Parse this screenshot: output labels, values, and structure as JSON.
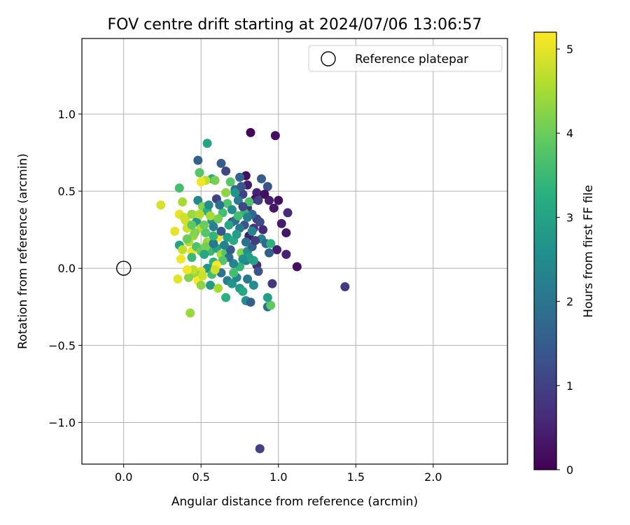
{
  "chart_data": {
    "type": "scatter",
    "title": "FOV centre drift starting at 2024/07/06 13:06:57",
    "xlabel": "Angular distance from reference (arcmin)",
    "ylabel": "Rotation from reference (arcmin)",
    "xlim": [
      -0.27,
      2.48
    ],
    "ylim": [
      -1.27,
      1.49
    ],
    "x_ticks": [
      0.0,
      0.5,
      1.0,
      1.5,
      2.0
    ],
    "x_tick_labels": [
      "0.0",
      "0.5",
      "1.0",
      "1.5",
      "2.0"
    ],
    "y_ticks": [
      -1.0,
      -0.5,
      0.0,
      0.5,
      1.0
    ],
    "y_tick_labels": [
      "−1.0",
      "−0.5",
      "0.0",
      "0.5",
      "1.0"
    ],
    "grid": true,
    "legend": {
      "placement": "top-right",
      "entries": [
        "Reference platepar"
      ]
    },
    "reference_point": {
      "x": 0.0,
      "y": 0.0
    },
    "colorbar": {
      "label": "Hours from first FF file",
      "range": [
        0,
        5.2
      ],
      "ticks": [
        0,
        1,
        2,
        3,
        4,
        5
      ],
      "tick_labels": [
        "0",
        "1",
        "2",
        "3",
        "4",
        "5"
      ],
      "colormap": "viridis"
    },
    "points": [
      {
        "x": 0.82,
        "y": 0.88,
        "h": 0.1
      },
      {
        "x": 0.98,
        "y": 0.86,
        "h": 0.2
      },
      {
        "x": 0.54,
        "y": 0.81,
        "h": 3.0
      },
      {
        "x": 1.43,
        "y": -0.12,
        "h": 0.9
      },
      {
        "x": 0.88,
        "y": -1.17,
        "h": 1.0
      },
      {
        "x": 1.12,
        "y": 0.01,
        "h": 0.2
      },
      {
        "x": 1.06,
        "y": 0.36,
        "h": 0.6
      },
      {
        "x": 1.05,
        "y": 0.23,
        "h": 0.3
      },
      {
        "x": 1.02,
        "y": 0.29,
        "h": 0.4
      },
      {
        "x": 1.0,
        "y": 0.44,
        "h": 0.2
      },
      {
        "x": 0.97,
        "y": 0.39,
        "h": 0.3
      },
      {
        "x": 0.94,
        "y": 0.44,
        "h": 0.4
      },
      {
        "x": 1.05,
        "y": 0.09,
        "h": 0.5
      },
      {
        "x": 0.99,
        "y": 0.12,
        "h": 0.4
      },
      {
        "x": 0.96,
        "y": -0.1,
        "h": 0.8
      },
      {
        "x": 0.94,
        "y": 0.1,
        "h": 1.5
      },
      {
        "x": 0.93,
        "y": 0.53,
        "h": 1.3
      },
      {
        "x": 0.89,
        "y": 0.58,
        "h": 1.5
      },
      {
        "x": 0.86,
        "y": 0.49,
        "h": 0.5
      },
      {
        "x": 0.79,
        "y": 0.6,
        "h": 0.2
      },
      {
        "x": 0.75,
        "y": 0.59,
        "h": 1.7
      },
      {
        "x": 0.8,
        "y": 0.54,
        "h": 0.4
      },
      {
        "x": 0.77,
        "y": 0.48,
        "h": 1.0
      },
      {
        "x": 0.74,
        "y": 0.44,
        "h": 2.2
      },
      {
        "x": 0.8,
        "y": 0.39,
        "h": 0.7
      },
      {
        "x": 0.86,
        "y": 0.32,
        "h": 1.0
      },
      {
        "x": 0.89,
        "y": 0.19,
        "h": 2.3
      },
      {
        "x": 0.81,
        "y": 0.21,
        "h": 0.4
      },
      {
        "x": 0.78,
        "y": 0.28,
        "h": 1.3
      },
      {
        "x": 0.84,
        "y": 0.26,
        "h": 0.8
      },
      {
        "x": 0.7,
        "y": 0.3,
        "h": 1.2
      },
      {
        "x": 0.66,
        "y": 0.63,
        "h": 1.1
      },
      {
        "x": 0.63,
        "y": 0.68,
        "h": 1.5
      },
      {
        "x": 0.6,
        "y": 0.45,
        "h": 1.0
      },
      {
        "x": 0.67,
        "y": 0.42,
        "h": 3.7
      },
      {
        "x": 0.64,
        "y": 0.36,
        "h": 3.6
      },
      {
        "x": 0.48,
        "y": 0.7,
        "h": 1.6
      },
      {
        "x": 0.49,
        "y": 0.62,
        "h": 3.8
      },
      {
        "x": 0.57,
        "y": 0.58,
        "h": 3.2
      },
      {
        "x": 0.59,
        "y": 0.57,
        "h": 4.1
      },
      {
        "x": 0.53,
        "y": 0.57,
        "h": 4.7
      },
      {
        "x": 0.5,
        "y": 0.56,
        "h": 5.1
      },
      {
        "x": 0.69,
        "y": 0.56,
        "h": 3.8
      },
      {
        "x": 0.72,
        "y": 0.51,
        "h": 1.8
      },
      {
        "x": 0.66,
        "y": 0.49,
        "h": 4.3
      },
      {
        "x": 0.36,
        "y": 0.52,
        "h": 3.6
      },
      {
        "x": 0.24,
        "y": 0.41,
        "h": 4.9
      },
      {
        "x": 0.38,
        "y": 0.43,
        "h": 4.5
      },
      {
        "x": 0.48,
        "y": 0.44,
        "h": 2.4
      },
      {
        "x": 0.51,
        "y": 0.4,
        "h": 4.2
      },
      {
        "x": 0.54,
        "y": 0.37,
        "h": 3.3
      },
      {
        "x": 0.36,
        "y": 0.35,
        "h": 5.0
      },
      {
        "x": 0.39,
        "y": 0.33,
        "h": 4.8
      },
      {
        "x": 0.44,
        "y": 0.35,
        "h": 4.4
      },
      {
        "x": 0.47,
        "y": 0.3,
        "h": 2.8
      },
      {
        "x": 0.5,
        "y": 0.26,
        "h": 4.6
      },
      {
        "x": 0.53,
        "y": 0.23,
        "h": 3.8
      },
      {
        "x": 0.57,
        "y": 0.31,
        "h": 2.6
      },
      {
        "x": 0.61,
        "y": 0.32,
        "h": 4.1
      },
      {
        "x": 0.33,
        "y": 0.24,
        "h": 5.0
      },
      {
        "x": 0.41,
        "y": 0.26,
        "h": 4.8
      },
      {
        "x": 0.45,
        "y": 0.21,
        "h": 4.4
      },
      {
        "x": 0.42,
        "y": 0.17,
        "h": 4.6
      },
      {
        "x": 0.36,
        "y": 0.15,
        "h": 3.0
      },
      {
        "x": 0.38,
        "y": 0.12,
        "h": 4.7
      },
      {
        "x": 0.44,
        "y": 0.11,
        "h": 5.1
      },
      {
        "x": 0.47,
        "y": 0.14,
        "h": 3.7
      },
      {
        "x": 0.5,
        "y": 0.11,
        "h": 4.0
      },
      {
        "x": 0.54,
        "y": 0.17,
        "h": 4.4
      },
      {
        "x": 0.56,
        "y": 0.11,
        "h": 3.5
      },
      {
        "x": 0.6,
        "y": 0.13,
        "h": 3.0
      },
      {
        "x": 0.63,
        "y": 0.09,
        "h": 4.5
      },
      {
        "x": 0.66,
        "y": 0.1,
        "h": 3.8
      },
      {
        "x": 0.61,
        "y": 0.2,
        "h": 5.1
      },
      {
        "x": 0.67,
        "y": 0.2,
        "h": 2.9
      },
      {
        "x": 0.71,
        "y": 0.18,
        "h": 3.2
      },
      {
        "x": 0.76,
        "y": 0.1,
        "h": 4.2
      },
      {
        "x": 0.8,
        "y": 0.11,
        "h": 2.6
      },
      {
        "x": 0.83,
        "y": 0.14,
        "h": 1.6
      },
      {
        "x": 0.86,
        "y": 0.02,
        "h": 0.7
      },
      {
        "x": 0.79,
        "y": 0.05,
        "h": 2.2
      },
      {
        "x": 0.75,
        "y": 0.01,
        "h": 3.4
      },
      {
        "x": 0.71,
        "y": 0.03,
        "h": 2.4
      },
      {
        "x": 0.68,
        "y": 0.07,
        "h": 1.9
      },
      {
        "x": 0.64,
        "y": 0.05,
        "h": 3.8
      },
      {
        "x": 0.58,
        "y": 0.04,
        "h": 3.3
      },
      {
        "x": 0.54,
        "y": 0.0,
        "h": 2.7
      },
      {
        "x": 0.5,
        "y": -0.02,
        "h": 4.9
      },
      {
        "x": 0.47,
        "y": -0.04,
        "h": 4.4
      },
      {
        "x": 0.42,
        "y": -0.06,
        "h": 4.2
      },
      {
        "x": 0.35,
        "y": -0.07,
        "h": 5.0
      },
      {
        "x": 0.37,
        "y": 0.06,
        "h": 5.1
      },
      {
        "x": 0.44,
        "y": 0.07,
        "h": 3.5
      },
      {
        "x": 0.48,
        "y": -0.08,
        "h": 5.2
      },
      {
        "x": 0.51,
        "y": -0.05,
        "h": 4.8
      },
      {
        "x": 0.5,
        "y": -0.11,
        "h": 4.3
      },
      {
        "x": 0.56,
        "y": -0.11,
        "h": 2.8
      },
      {
        "x": 0.57,
        "y": -0.04,
        "h": 3.6
      },
      {
        "x": 0.61,
        "y": -0.13,
        "h": 4.5
      },
      {
        "x": 0.63,
        "y": -0.03,
        "h": 2.0
      },
      {
        "x": 0.66,
        "y": -0.19,
        "h": 3.3
      },
      {
        "x": 0.67,
        "y": -0.08,
        "h": 2.2
      },
      {
        "x": 0.7,
        "y": -0.1,
        "h": 2.7
      },
      {
        "x": 0.73,
        "y": -0.06,
        "h": 2.4
      },
      {
        "x": 0.75,
        "y": -0.13,
        "h": 2.8
      },
      {
        "x": 0.77,
        "y": -0.15,
        "h": 3.1
      },
      {
        "x": 0.79,
        "y": -0.21,
        "h": 2.6
      },
      {
        "x": 0.82,
        "y": -0.22,
        "h": 1.6
      },
      {
        "x": 0.84,
        "y": -0.11,
        "h": 2.5
      },
      {
        "x": 0.87,
        "y": -0.02,
        "h": 1.3
      },
      {
        "x": 0.93,
        "y": -0.25,
        "h": 1.9
      },
      {
        "x": 0.95,
        "y": -0.24,
        "h": 3.9
      },
      {
        "x": 0.93,
        "y": -0.19,
        "h": 2.9
      },
      {
        "x": 0.43,
        "y": -0.29,
        "h": 4.4
      },
      {
        "x": 0.6,
        "y": 0.02,
        "h": 5.2
      },
      {
        "x": 0.59,
        "y": -0.01,
        "h": 4.8
      },
      {
        "x": 0.72,
        "y": 0.31,
        "h": 2.0
      },
      {
        "x": 0.85,
        "y": 0.45,
        "h": 0.3
      },
      {
        "x": 0.91,
        "y": 0.48,
        "h": 0.2
      },
      {
        "x": 0.83,
        "y": 0.35,
        "h": 1.8
      },
      {
        "x": 0.78,
        "y": 0.36,
        "h": 3.4
      },
      {
        "x": 0.75,
        "y": 0.26,
        "h": 2.1
      },
      {
        "x": 0.73,
        "y": 0.22,
        "h": 2.9
      },
      {
        "x": 0.84,
        "y": 0.05,
        "h": 3.0
      },
      {
        "x": 0.92,
        "y": 0.16,
        "h": 1.7
      },
      {
        "x": 0.95,
        "y": 0.16,
        "h": 3.3
      },
      {
        "x": 0.85,
        "y": 0.18,
        "h": 0.9
      },
      {
        "x": 0.55,
        "y": 0.41,
        "h": 2.5
      },
      {
        "x": 0.58,
        "y": 0.27,
        "h": 2.3
      },
      {
        "x": 0.63,
        "y": 0.24,
        "h": 1.4
      },
      {
        "x": 0.7,
        "y": 0.38,
        "h": 2.5
      },
      {
        "x": 0.81,
        "y": 0.43,
        "h": 3.7
      },
      {
        "x": 0.77,
        "y": 0.4,
        "h": 1.1
      },
      {
        "x": 0.88,
        "y": 0.3,
        "h": 1.2
      },
      {
        "x": 0.74,
        "y": 0.34,
        "h": 3.6
      },
      {
        "x": 0.79,
        "y": 0.17,
        "h": 1.9
      },
      {
        "x": 0.52,
        "y": 0.28,
        "h": 4.0
      },
      {
        "x": 0.46,
        "y": 0.23,
        "h": 4.2
      },
      {
        "x": 0.4,
        "y": 0.31,
        "h": 4.8
      },
      {
        "x": 0.41,
        "y": 0.19,
        "h": 4.0
      },
      {
        "x": 0.53,
        "y": 0.14,
        "h": 4.1
      },
      {
        "x": 0.58,
        "y": 0.16,
        "h": 2.1
      },
      {
        "x": 0.69,
        "y": 0.12,
        "h": 1.5
      },
      {
        "x": 0.65,
        "y": 0.15,
        "h": 2.3
      },
      {
        "x": 0.81,
        "y": 0.07,
        "h": 2.9
      },
      {
        "x": 0.72,
        "y": 0.49,
        "h": 2.7
      },
      {
        "x": 0.62,
        "y": 0.41,
        "h": 2.0
      },
      {
        "x": 0.68,
        "y": 0.28,
        "h": 3.1
      },
      {
        "x": 0.76,
        "y": 0.53,
        "h": 1.4
      },
      {
        "x": 0.56,
        "y": 0.34,
        "h": 4.5
      },
      {
        "x": 0.49,
        "y": 0.35,
        "h": 4.6
      },
      {
        "x": 0.44,
        "y": 0.28,
        "h": 3.9
      },
      {
        "x": 0.58,
        "y": 0.21,
        "h": 3.4
      },
      {
        "x": 0.45,
        "y": -0.01,
        "h": 4.7
      },
      {
        "x": 0.41,
        "y": -0.01,
        "h": 5.1
      },
      {
        "x": 0.52,
        "y": 0.09,
        "h": 3.1
      },
      {
        "x": 0.71,
        "y": -0.03,
        "h": 3.6
      },
      {
        "x": 0.8,
        "y": -0.07,
        "h": 2.1
      },
      {
        "x": 0.87,
        "y": 0.44,
        "h": 1.0
      },
      {
        "x": 0.83,
        "y": 0.24,
        "h": 2.4
      },
      {
        "x": 0.9,
        "y": 0.25,
        "h": 0.6
      },
      {
        "x": 0.77,
        "y": 0.06,
        "h": 2.6
      },
      {
        "x": 0.8,
        "y": 0.33,
        "h": 2.2
      }
    ]
  }
}
